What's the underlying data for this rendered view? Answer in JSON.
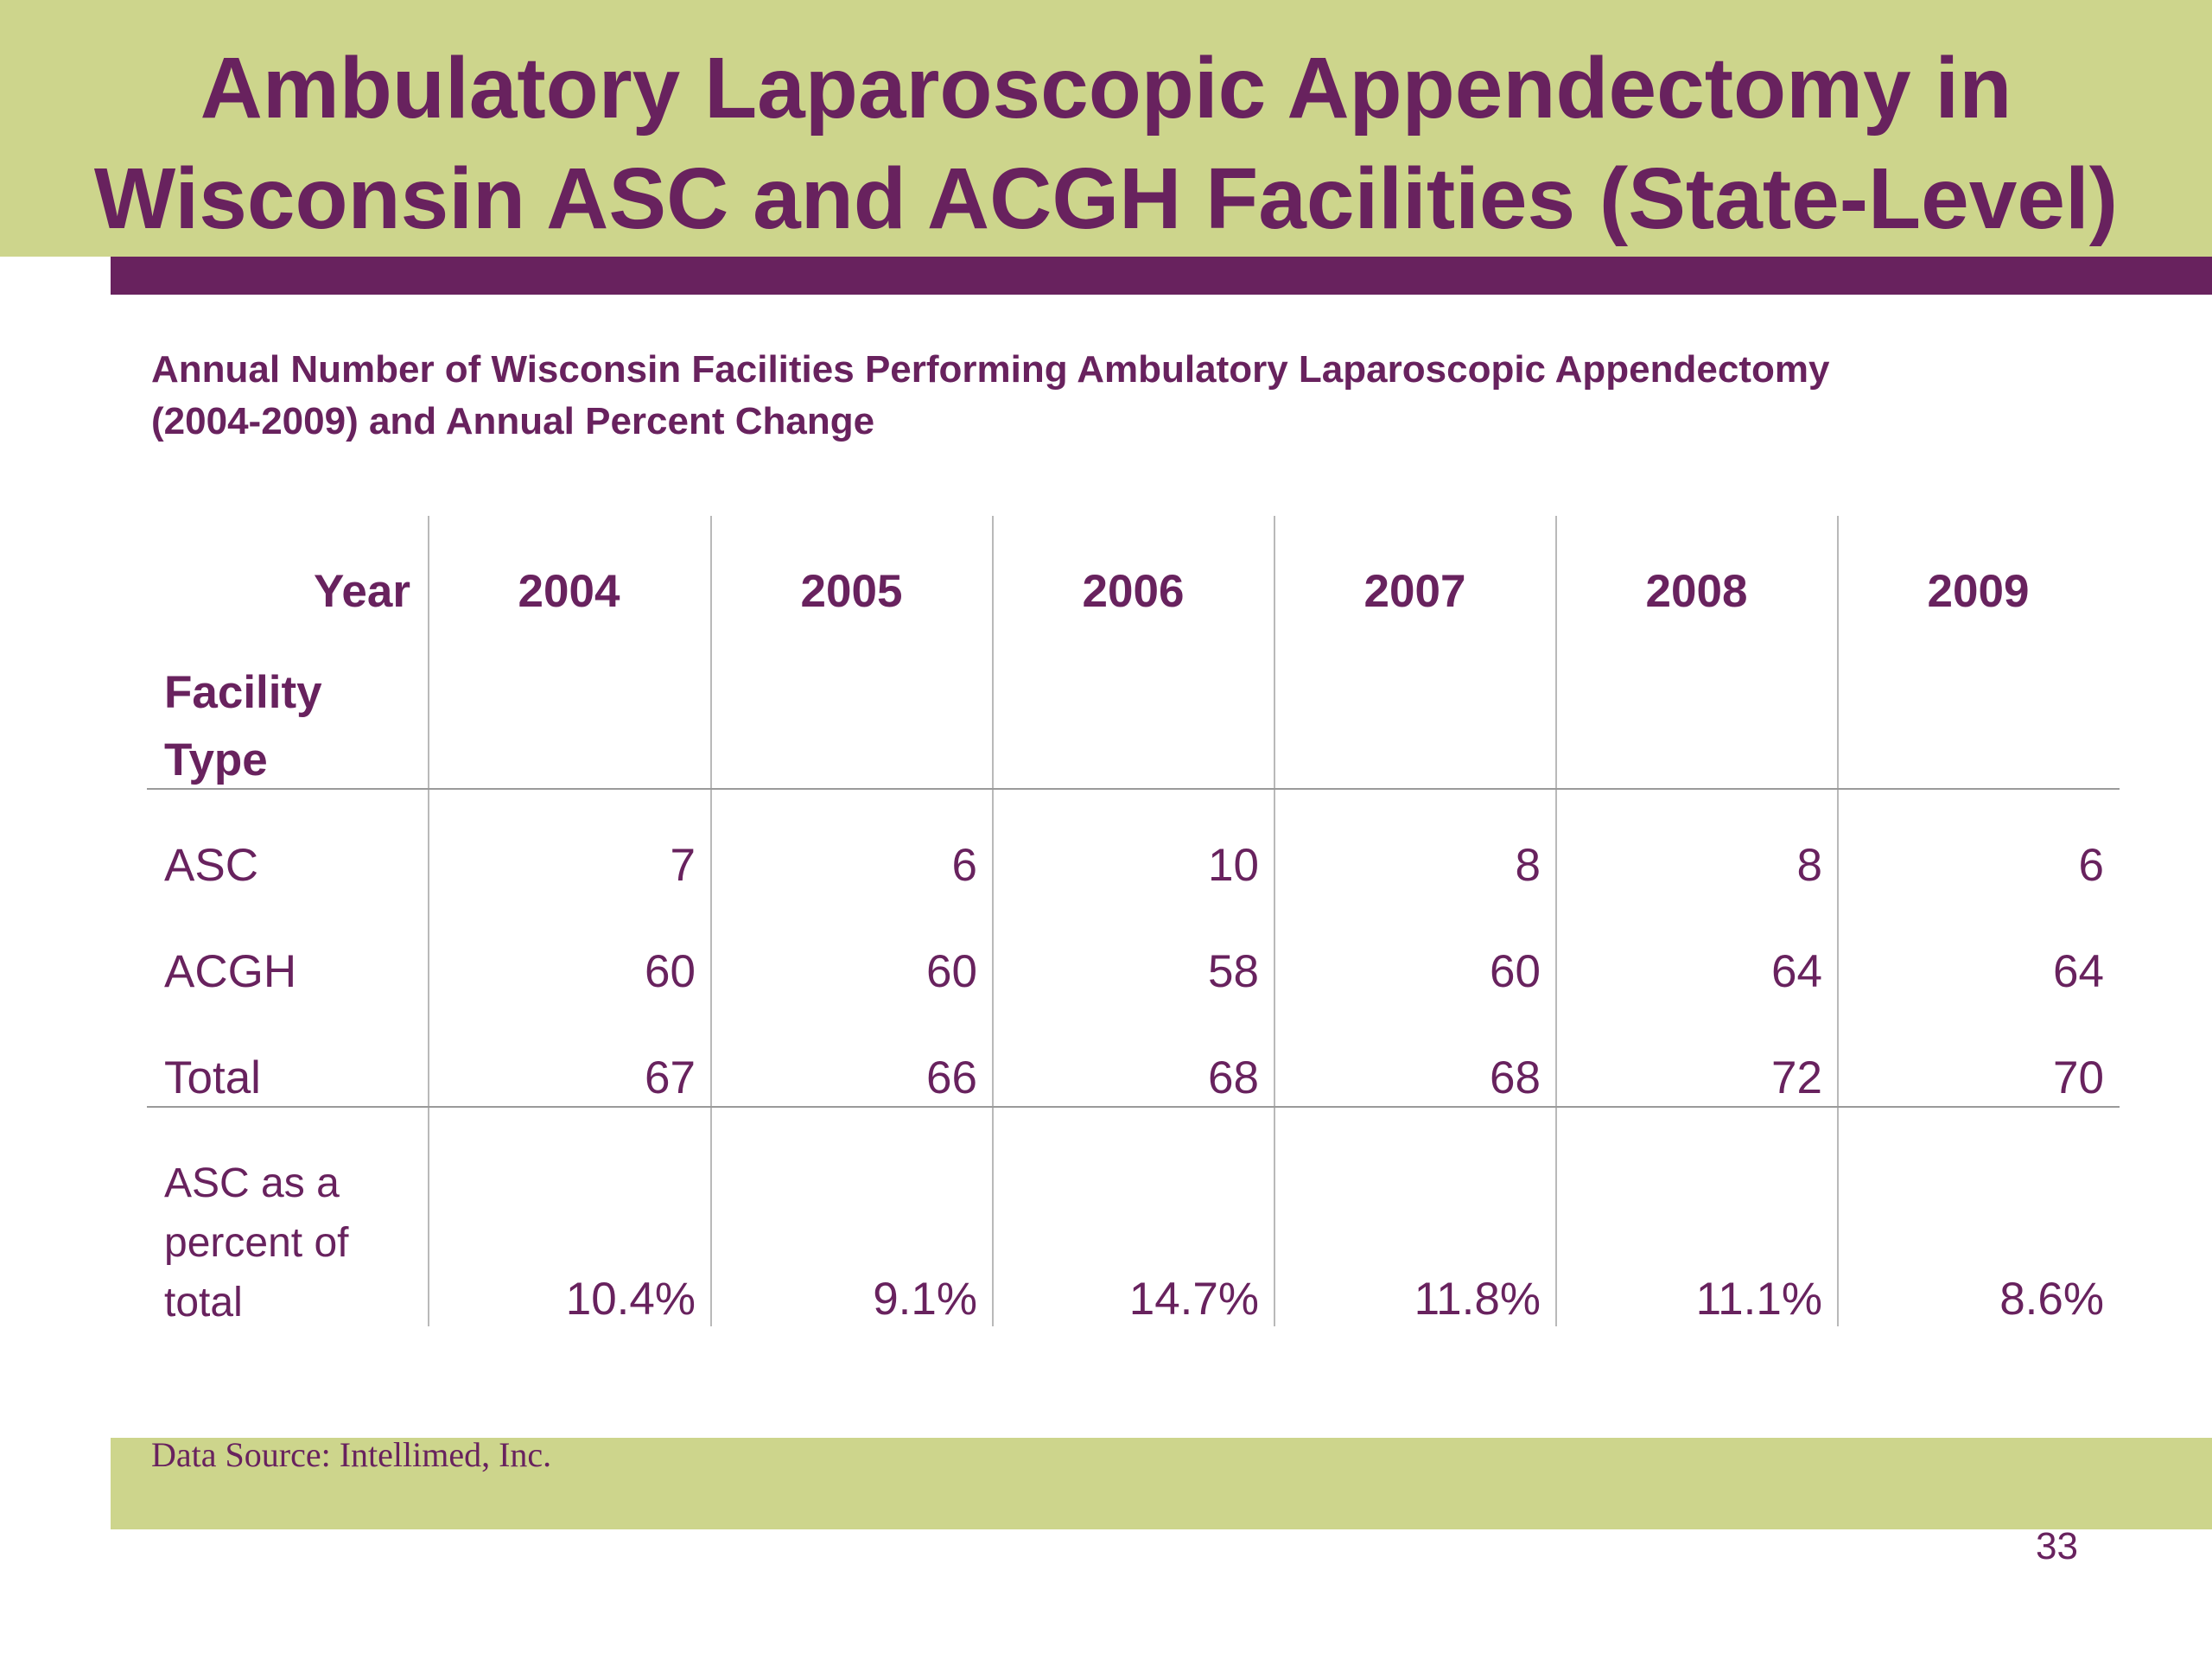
{
  "slide": {
    "title_lines": [
      "Ambulatory Laparoscopic Appendectomy in",
      "Wisconsin ASC and ACGH Facilities (State-Level)"
    ],
    "subtitle_lines": [
      "Annual Number of Wisconsin Facilities Performing Ambulatory Laparoscopic Appendectomy",
      "(2004-2009) and Annual Percent Change"
    ],
    "source": "Data Source: Intellimed, Inc.",
    "page_number": "33",
    "colors": {
      "accent_purple": "#68225e",
      "band_green": "#cdd58c"
    }
  },
  "table": {
    "year_label": "Year",
    "facility_label_lines": [
      "Facility",
      "Type"
    ],
    "years": [
      "2004",
      "2005",
      "2006",
      "2007",
      "2008",
      "2009"
    ],
    "rows": [
      {
        "label": "ASC",
        "values": [
          "7",
          "6",
          "10",
          "8",
          "8",
          "6"
        ]
      },
      {
        "label": "ACGH",
        "values": [
          "60",
          "60",
          "58",
          "60",
          "64",
          "64"
        ]
      },
      {
        "label": "Total",
        "values": [
          "67",
          "66",
          "68",
          "68",
          "72",
          "70"
        ]
      }
    ],
    "percent_row": {
      "label_lines": [
        "ASC as a",
        "percent of",
        "total"
      ],
      "values": [
        "10.4%",
        "9.1%",
        "14.7%",
        "11.8%",
        "11.1%",
        "8.6%"
      ]
    }
  }
}
